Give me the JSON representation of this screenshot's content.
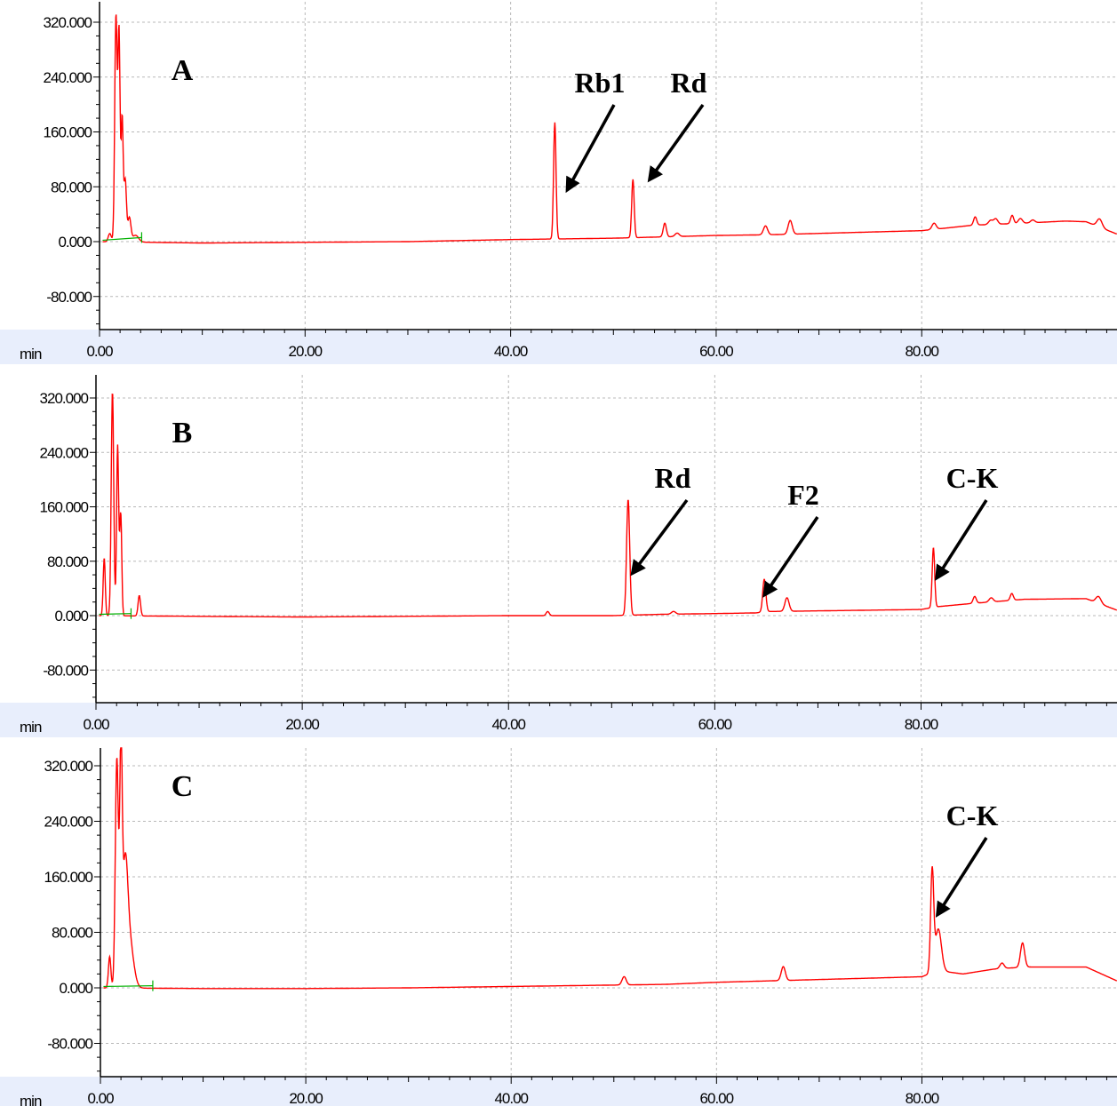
{
  "chart_data": [
    {
      "type": "line",
      "panel_label": "A",
      "x_unit_label": "min",
      "y_ticks": [
        "320.000",
        "240.000",
        "160.000",
        "80.000",
        "0.000",
        "-80.000"
      ],
      "x_ticks": [
        "0.00",
        "20.00",
        "40.00",
        "60.00",
        "80.00"
      ],
      "xlim": [
        0,
        99
      ],
      "ylim": [
        -125,
        335
      ],
      "grid": true,
      "colors": {
        "trace": "#ff0000",
        "baseline": "#00b000",
        "axis_band": "#e8eefc"
      },
      "series": [
        {
          "baseline": [
            [
              0,
              0
            ],
            [
              10,
              -2
            ],
            [
              20,
              -1
            ],
            [
              30,
              0
            ],
            [
              40,
              3
            ],
            [
              45,
              4
            ],
            [
              50,
              5
            ],
            [
              55,
              7
            ],
            [
              60,
              9
            ],
            [
              65,
              10
            ],
            [
              70,
              12
            ],
            [
              75,
              14
            ],
            [
              80,
              16
            ],
            [
              85,
              24
            ],
            [
              90,
              27
            ],
            [
              94,
              30
            ],
            [
              96,
              29
            ],
            [
              99,
              11
            ]
          ],
          "peaks": [
            [
              1.0,
              12,
              0.15
            ],
            [
              1.6,
              330,
              0.12
            ],
            [
              1.9,
              300,
              0.1
            ],
            [
              2.2,
              180,
              0.1
            ],
            [
              2.5,
              90,
              0.12
            ],
            [
              2.9,
              35,
              0.15
            ],
            [
              3.5,
              10,
              0.3
            ],
            [
              44.3,
              170,
              0.12
            ],
            [
              51.9,
              85,
              0.12
            ],
            [
              55.0,
              20,
              0.15
            ],
            [
              56.2,
              5,
              0.2
            ],
            [
              64.8,
              13,
              0.2
            ],
            [
              67.2,
              20,
              0.2
            ],
            [
              81.2,
              9,
              0.2
            ],
            [
              85.2,
              12,
              0.15
            ],
            [
              86.7,
              6,
              0.2
            ],
            [
              87.2,
              8,
              0.2
            ],
            [
              88.8,
              12,
              0.15
            ],
            [
              89.6,
              7,
              0.2
            ],
            [
              90.8,
              4,
              0.2
            ],
            [
              97.3,
              12,
              0.25
            ]
          ]
        }
      ],
      "integration_baseline": [
        [
          0.3,
          2
        ],
        [
          4.1,
          6
        ]
      ],
      "annotations": [
        {
          "text": "Rb1",
          "arrow_to": [
            45.5,
            75
          ]
        },
        {
          "text": "Rd",
          "arrow_to": [
            53.5,
            90
          ]
        }
      ]
    },
    {
      "type": "line",
      "panel_label": "B",
      "x_unit_label": "min",
      "y_ticks": [
        "320.000",
        "240.000",
        "160.000",
        "80.000",
        "0.000",
        "-80.000"
      ],
      "x_ticks": [
        "0.00",
        "20.00",
        "40.00",
        "60.00",
        "80.00"
      ],
      "xlim": [
        0,
        99
      ],
      "ylim": [
        -125,
        335
      ],
      "grid": true,
      "colors": {
        "trace": "#ff0000",
        "baseline": "#00b000",
        "axis_band": "#e8eefc"
      },
      "series": [
        {
          "baseline": [
            [
              0,
              0
            ],
            [
              10,
              -1
            ],
            [
              20,
              -2
            ],
            [
              30,
              -1
            ],
            [
              40,
              0
            ],
            [
              50,
              0
            ],
            [
              55,
              2
            ],
            [
              60,
              3
            ],
            [
              64,
              4
            ],
            [
              65,
              6
            ],
            [
              70,
              7
            ],
            [
              75,
              8
            ],
            [
              80,
              9
            ],
            [
              81.5,
              13
            ],
            [
              85,
              18
            ],
            [
              90,
              24
            ],
            [
              96,
              25
            ],
            [
              99,
              8
            ]
          ],
          "peaks": [
            [
              0.8,
              85,
              0.1
            ],
            [
              1.6,
              330,
              0.12
            ],
            [
              2.1,
              250,
              0.1
            ],
            [
              2.4,
              150,
              0.1
            ],
            [
              4.2,
              30,
              0.12
            ],
            [
              43.8,
              6,
              0.15
            ],
            [
              51.6,
              170,
              0.15
            ],
            [
              56.0,
              4,
              0.2
            ],
            [
              64.8,
              48,
              0.15
            ],
            [
              67.0,
              20,
              0.2
            ],
            [
              81.2,
              88,
              0.12
            ],
            [
              85.2,
              10,
              0.15
            ],
            [
              86.8,
              6,
              0.2
            ],
            [
              88.8,
              10,
              0.15
            ],
            [
              97.2,
              10,
              0.25
            ]
          ]
        }
      ],
      "integration_baseline": [
        [
          0.3,
          2
        ],
        [
          3.4,
          3
        ]
      ],
      "annotations": [
        {
          "text": "Rd",
          "arrow_to": [
            52.0,
            62
          ]
        },
        {
          "text": "F2",
          "arrow_to": [
            64.8,
            30
          ]
        },
        {
          "text": "C-K",
          "arrow_to": [
            81.5,
            55
          ]
        }
      ]
    },
    {
      "type": "line",
      "panel_label": "C",
      "x_unit_label": "min",
      "y_ticks": [
        "320.000",
        "240.000",
        "160.000",
        "80.000",
        "0.000",
        "-80.000"
      ],
      "x_ticks": [
        "0.00",
        "20.00",
        "40.00",
        "60.00",
        "80.00"
      ],
      "xlim": [
        0,
        99
      ],
      "ylim": [
        -125,
        335
      ],
      "grid": true,
      "colors": {
        "trace": "#ff0000",
        "baseline": "#00b000",
        "axis_band": "#e8eefc"
      },
      "series": [
        {
          "baseline": [
            [
              0,
              0
            ],
            [
              10,
              -1
            ],
            [
              20,
              -1
            ],
            [
              30,
              0
            ],
            [
              40,
              2
            ],
            [
              50,
              4
            ],
            [
              55,
              5
            ],
            [
              60,
              8
            ],
            [
              65,
              10
            ],
            [
              70,
              12
            ],
            [
              75,
              14
            ],
            [
              80,
              16
            ],
            [
              81.5,
              25
            ],
            [
              84,
              20
            ],
            [
              87,
              27
            ],
            [
              90,
              30
            ],
            [
              96,
              30
            ],
            [
              99,
              10
            ]
          ],
          "peaks": [
            [
              0.9,
              45,
              0.12
            ],
            [
              1.6,
              330,
              0.15
            ],
            [
              2.0,
              320,
              0.12
            ],
            [
              2.4,
              150,
              0.25
            ],
            [
              2.8,
              70,
              0.4
            ],
            [
              51.0,
              12,
              0.2
            ],
            [
              66.5,
              20,
              0.2
            ],
            [
              81.0,
              145,
              0.15
            ],
            [
              81.6,
              60,
              0.3
            ],
            [
              87.8,
              8,
              0.2
            ],
            [
              89.8,
              35,
              0.2
            ]
          ]
        }
      ],
      "integration_baseline": [
        [
          0.3,
          2
        ],
        [
          5.1,
          3
        ]
      ],
      "annotations": [
        {
          "text": "C-K",
          "arrow_to": [
            81.5,
            105
          ]
        }
      ]
    }
  ]
}
